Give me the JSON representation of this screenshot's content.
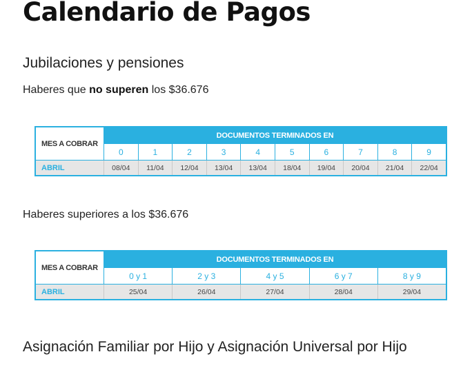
{
  "page": {
    "title": "Calendario de Pagos"
  },
  "section1": {
    "heading": "Jubilaciones y pensiones",
    "intro_before": "Haberes que ",
    "intro_bold": "no superen",
    "intro_after": " los $36.676",
    "table": {
      "month_header": "MES A COBRAR",
      "docs_header": "DOCUMENTOS TERMINADOS EN",
      "digits": [
        "0",
        "1",
        "2",
        "3",
        "4",
        "5",
        "6",
        "7",
        "8",
        "9"
      ],
      "month": "ABRIL",
      "dates": [
        "08/04",
        "11/04",
        "12/04",
        "13/04",
        "13/04",
        "18/04",
        "19/04",
        "20/04",
        "21/04",
        "22/04"
      ]
    }
  },
  "section2": {
    "intro": "Haberes superiores a los $36.676",
    "table": {
      "month_header": "MES A COBRAR",
      "docs_header": "DOCUMENTOS TERMINADOS EN",
      "digits": [
        "0 y 1",
        "2 y 3",
        "4 y 5",
        "6 y 7",
        "8 y 9"
      ],
      "month": "ABRIL",
      "dates": [
        "25/04",
        "26/04",
        "27/04",
        "28/04",
        "29/04"
      ]
    }
  },
  "section3": {
    "heading": "Asignación Familiar por Hijo y Asignación Universal por Hijo"
  },
  "colors": {
    "accent": "#2ab0e0",
    "row_background": "#e6e6e6",
    "text": "#222222"
  }
}
